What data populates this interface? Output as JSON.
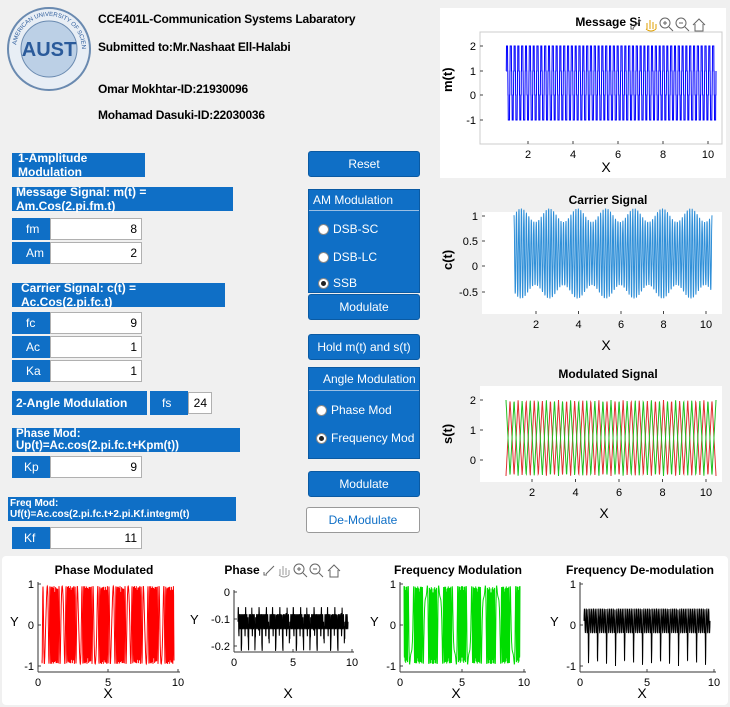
{
  "header": {
    "lab_title": "CCE401L-Communication Systems Labaratory",
    "submitted_to": "Submitted to:Mr.Nashaat Ell-Halabi",
    "student1": "Omar Mokhtar-ID:21930096",
    "student2": "Mohamad Dasuki-ID:22030036",
    "logo_text": "AUST",
    "logo_ring_text": "AMERICAN UNIVERSITY OF SCIENCE & TECHNOLOGY"
  },
  "am_section": {
    "title": "1-Amplitude Modulation",
    "message_label": "Message Signal: m(t) = Am.Cos(2.pi.fm.t)",
    "fm_label": "fm",
    "fm_value": "8",
    "am_label": "Am",
    "am_value": "2",
    "carrier_label": "Carrier Signal: c(t) = Ac.Cos(2.pi.fc.t)",
    "fc_label": "fc",
    "fc_value": "9",
    "ac_label": "Ac",
    "ac_value": "1",
    "ka_label": "Ka",
    "ka_value": "1"
  },
  "angle_section": {
    "title": "2-Angle Modulation",
    "fs_label": "fs",
    "fs_value": "24",
    "phase_label": "Phase Mod: Up(t)=Ac.cos(2.pi.fc.t+Kpm(t))",
    "kp_label": "Kp",
    "kp_value": "9",
    "freq_label": "Freq Mod: Uf(t)=Ac.cos(2.pi.fc.t+2.pi.Kf.integm(t)",
    "kf_label": "Kf",
    "kf_value": "11"
  },
  "controls": {
    "reset": "Reset",
    "am_group_title": "AM Modulation",
    "am_options": [
      "DSB-SC",
      "DSB-LC",
      "SSB"
    ],
    "am_selected": 2,
    "modulate_am": "Modulate",
    "hold": "Hold m(t) and s(t)",
    "angle_group_title": "Angle Modulation",
    "angle_options": [
      "Phase Mod",
      "Frequency Mod"
    ],
    "angle_selected": 1,
    "modulate_angle": "Modulate",
    "demodulate": "De-Modulate"
  },
  "plots": {
    "message": {
      "title": "Message Si",
      "ylabel": "m(t)",
      "xlabel": "X",
      "xticks": [
        "2",
        "4",
        "6",
        "8",
        "10"
      ],
      "yticks": [
        "2",
        "1",
        "0",
        "-1"
      ],
      "color": "#0000ff"
    },
    "carrier": {
      "title": "Carrier Signal",
      "ylabel": "c(t)",
      "xlabel": "X",
      "xticks": [
        "2",
        "4",
        "6",
        "8",
        "10"
      ],
      "yticks": [
        "1",
        "0.5",
        "0",
        "-0.5"
      ],
      "color": "#2f8fd8"
    },
    "modulated": {
      "title": "Modulated Signal",
      "ylabel": "s(t)",
      "xlabel": "X",
      "xticks": [
        "2",
        "4",
        "6",
        "8",
        "10"
      ],
      "yticks": [
        "2",
        "1",
        "0"
      ],
      "color1": "#e03030",
      "color2": "#20c020"
    },
    "phase_mod": {
      "title": "Phase Modulated",
      "ylabel": "Y",
      "xlabel": "X",
      "xticks": [
        "0",
        "5",
        "10"
      ],
      "yticks": [
        "1",
        "0",
        "-1"
      ],
      "color": "#ff0000"
    },
    "phase_demod": {
      "title": "Phase",
      "ylabel": "Y",
      "xlabel": "X",
      "xticks": [
        "0",
        "5",
        "10"
      ],
      "yticks": [
        "0",
        "-0.1",
        "-0.2"
      ],
      "color": "#000000"
    },
    "freq_mod": {
      "title": "Frequency Modulation",
      "ylabel": "Y",
      "xlabel": "X",
      "xticks": [
        "0",
        "5",
        "10"
      ],
      "yticks": [
        "1",
        "0",
        "-1"
      ],
      "color": "#00dd00"
    },
    "freq_demod": {
      "title": "Frequency De-modulation",
      "ylabel": "Y",
      "xlabel": "X",
      "xticks": [
        "0",
        "5",
        "10"
      ],
      "yticks": [
        "1",
        "0",
        "-1"
      ],
      "color": "#000000"
    }
  }
}
